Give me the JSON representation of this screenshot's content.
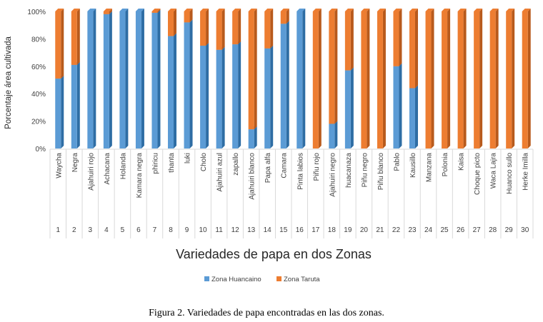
{
  "chart_data": {
    "type": "bar",
    "stacked": true,
    "percent_stacked": true,
    "xlabel": "Variedades de papa en dos Zonas",
    "ylabel": "Porcentaje área cultivada",
    "ylim": [
      0,
      100
    ],
    "yticks": [
      "0%",
      "20%",
      "40%",
      "60%",
      "80%",
      "100%"
    ],
    "numbers": [
      "1",
      "2",
      "3",
      "4",
      "5",
      "6",
      "7",
      "8",
      "9",
      "10",
      "11",
      "12",
      "13",
      "14",
      "15",
      "16",
      "17",
      "18",
      "19",
      "20",
      "21",
      "22",
      "23",
      "24",
      "25",
      "26",
      "27",
      "28",
      "29",
      "30"
    ],
    "categories": [
      "Waycha",
      "Negra",
      "Ajahuiri rojo",
      "Achacana",
      "Holanda",
      "Kamara negra",
      "phiricu",
      "thanta",
      "luki",
      "Cholo",
      "Ajahuiri azul",
      "zapallo",
      "Ajahuiri blanco",
      "Papa alfa",
      "Camara",
      "Pinta labios",
      "Piñu rojo",
      "Ajahuiri negro",
      "huacanaza",
      "Piñu negro",
      "Piñu blanco",
      "Pablo",
      "Kausillo",
      "Manzana",
      "Polonia",
      "Kaisa",
      "Choque picto",
      "Waca Lajra",
      "Huanco sullo",
      "Herke Imilla"
    ],
    "series": [
      {
        "name": "Zona Huancaino",
        "color": "#5b9bd5",
        "values": [
          51,
          61,
          100,
          98,
          100,
          100,
          99,
          82,
          92,
          75,
          72,
          76,
          14,
          73,
          91,
          100,
          0,
          18,
          57,
          0,
          0,
          60,
          44,
          0,
          0,
          0,
          0,
          0,
          0,
          0
        ]
      },
      {
        "name": "Zona Taruta",
        "color": "#ed7d31",
        "values": [
          49,
          39,
          0,
          2,
          0,
          0,
          1,
          18,
          8,
          25,
          28,
          24,
          86,
          27,
          9,
          0,
          100,
          82,
          43,
          100,
          100,
          40,
          56,
          100,
          100,
          100,
          100,
          100,
          100,
          100
        ]
      }
    ],
    "legend_position": "bottom",
    "grid": false
  },
  "caption": "Figura 2. Variedades de papa encontradas en las dos zonas."
}
